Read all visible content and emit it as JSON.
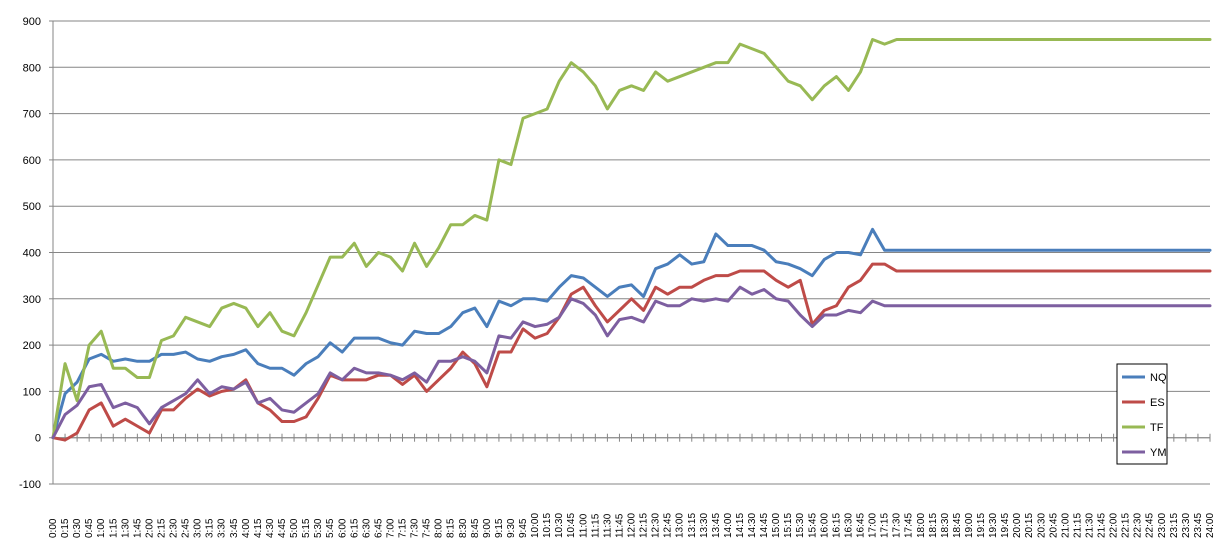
{
  "chart_data": {
    "type": "line",
    "title": "",
    "xlabel": "",
    "ylabel": "",
    "ylim": [
      -100,
      900
    ],
    "y_ticks": [
      "-100",
      "0",
      "100",
      "200",
      "300",
      "400",
      "500",
      "600",
      "700",
      "800",
      "900"
    ],
    "x_tick_every": 1,
    "x": [
      "0:00",
      "0:15",
      "0:30",
      "0:45",
      "1:00",
      "1:15",
      "1:30",
      "1:45",
      "2:00",
      "2:15",
      "2:30",
      "2:45",
      "3:00",
      "3:15",
      "3:30",
      "3:45",
      "4:00",
      "4:15",
      "4:30",
      "4:45",
      "5:00",
      "5:15",
      "5:30",
      "5:45",
      "6:00",
      "6:15",
      "6:30",
      "6:45",
      "7:00",
      "7:15",
      "7:30",
      "7:45",
      "8:00",
      "8:15",
      "8:30",
      "8:45",
      "9:00",
      "9:15",
      "9:30",
      "9:45",
      "10:00",
      "10:15",
      "10:30",
      "10:45",
      "11:00",
      "11:15",
      "11:30",
      "11:45",
      "12:00",
      "12:15",
      "12:30",
      "12:45",
      "13:00",
      "13:15",
      "13:30",
      "13:45",
      "14:00",
      "14:15",
      "14:30",
      "14:45",
      "15:00",
      "15:15",
      "15:30",
      "15:45",
      "16:00",
      "16:15",
      "16:30",
      "16:45",
      "17:00",
      "17:15",
      "17:30",
      "17:45",
      "18:00",
      "18:15",
      "18:30",
      "18:45",
      "19:00",
      "19:15",
      "19:30",
      "19:45",
      "20:00",
      "20:15",
      "20:30",
      "20:45",
      "21:00",
      "21:15",
      "21:30",
      "21:45",
      "22:00",
      "22:15",
      "22:30",
      "22:45",
      "23:00",
      "23:15",
      "23:30",
      "23:45",
      "24:00"
    ],
    "x_labels_shown": [
      "0:00",
      "0:15",
      "0:30",
      "0:45",
      "1:00",
      "1:15",
      "1:30",
      "1:45",
      "2:00",
      "2:15",
      "2:30",
      "2:45",
      "3:00",
      "3:15",
      "3:30",
      "3:45",
      "4:00",
      "4:15",
      "4:30",
      "4:45",
      "5:00",
      "5:15",
      "5:30",
      "5:45",
      "6:00",
      "6:15",
      "6:30",
      "6:45",
      "7:00",
      "7:15",
      "7:30",
      "7:45",
      "8:00",
      "8:15",
      "8:30",
      "8:45",
      "9:00",
      "9:15",
      "9:30",
      "9:45",
      "10:00",
      "10:15",
      "10:30",
      "10:45",
      "11:00",
      "11:15",
      "11:30",
      "11:45",
      "12:00",
      "12:15",
      "12:30",
      "12:45",
      "13:00",
      "13:15",
      "13:30",
      "13:45",
      "14:00",
      "14:15",
      "14:30",
      "14:45",
      "15:00",
      "15:15",
      "15:30",
      "15:45",
      "16:00",
      "16:15",
      "16:30",
      "16:45",
      "17:00",
      "17:15",
      "17:30",
      "17:45",
      "18:00",
      "18:15",
      "18:30",
      "18:45",
      "19:00",
      "19:15",
      "19:30",
      "19:45",
      "20:00",
      "20:15",
      "20:30",
      "20:45",
      "21:00",
      "21:15",
      "21:30",
      "21:45",
      "22:00",
      "22:15",
      "22:30",
      "22:45",
      "23:00",
      "23:15",
      "23:30",
      "23:45",
      "24:00"
    ],
    "grid": true,
    "legend_position": "right",
    "series": [
      {
        "name": "NQ",
        "color": "#4A7EBB",
        "values": [
          0,
          95,
          120,
          170,
          180,
          165,
          170,
          165,
          165,
          180,
          180,
          185,
          170,
          165,
          175,
          180,
          190,
          160,
          150,
          150,
          135,
          160,
          175,
          205,
          185,
          215,
          215,
          215,
          205,
          200,
          230,
          225,
          225,
          240,
          270,
          280,
          240,
          295,
          285,
          300,
          300,
          295,
          325,
          350,
          345,
          325,
          305,
          325,
          330,
          305,
          365,
          375,
          395,
          375,
          380,
          440,
          415,
          415,
          415,
          405,
          380,
          375,
          365,
          350,
          385,
          400,
          400,
          395,
          450,
          405,
          405,
          405,
          405,
          405,
          405,
          405,
          405,
          405,
          405,
          405,
          405,
          405,
          405,
          405,
          405,
          405,
          405,
          405,
          405,
          405,
          405,
          405,
          405,
          405,
          405,
          405,
          405
        ]
      },
      {
        "name": "ES",
        "color": "#BE4B48",
        "values": [
          0,
          -5,
          10,
          60,
          75,
          25,
          40,
          25,
          10,
          60,
          60,
          85,
          105,
          90,
          100,
          105,
          125,
          75,
          60,
          35,
          35,
          45,
          85,
          135,
          125,
          125,
          125,
          135,
          135,
          115,
          135,
          100,
          125,
          150,
          185,
          160,
          110,
          185,
          185,
          235,
          215,
          225,
          260,
          310,
          325,
          285,
          250,
          275,
          300,
          275,
          325,
          310,
          325,
          325,
          340,
          350,
          350,
          360,
          360,
          360,
          340,
          325,
          340,
          245,
          275,
          285,
          325,
          340,
          375,
          375,
          360,
          360,
          360,
          360,
          360,
          360,
          360,
          360,
          360,
          360,
          360,
          360,
          360,
          360,
          360,
          360,
          360,
          360,
          360,
          360,
          360,
          360,
          360,
          360,
          360,
          360,
          360
        ]
      },
      {
        "name": "TF",
        "color": "#98B954",
        "values": [
          0,
          160,
          80,
          200,
          230,
          150,
          150,
          130,
          130,
          210,
          220,
          260,
          250,
          240,
          280,
          290,
          280,
          240,
          270,
          230,
          220,
          270,
          330,
          390,
          390,
          420,
          370,
          400,
          390,
          360,
          420,
          370,
          410,
          460,
          460,
          480,
          470,
          600,
          590,
          690,
          700,
          710,
          770,
          810,
          790,
          760,
          710,
          750,
          760,
          750,
          790,
          770,
          780,
          790,
          800,
          810,
          810,
          850,
          840,
          830,
          800,
          770,
          760,
          730,
          760,
          780,
          750,
          790,
          860,
          850,
          860,
          860,
          860,
          860,
          860,
          860,
          860,
          860,
          860,
          860,
          860,
          860,
          860,
          860,
          860,
          860,
          860,
          860,
          860,
          860,
          860,
          860,
          860,
          860,
          860,
          860,
          860
        ]
      },
      {
        "name": "YM",
        "color": "#7D5FA0",
        "values": [
          0,
          50,
          70,
          110,
          115,
          65,
          75,
          65,
          30,
          65,
          80,
          95,
          125,
          95,
          110,
          105,
          120,
          75,
          85,
          60,
          55,
          75,
          95,
          140,
          125,
          150,
          140,
          140,
          135,
          125,
          140,
          120,
          165,
          165,
          175,
          165,
          140,
          220,
          215,
          250,
          240,
          245,
          260,
          300,
          290,
          265,
          220,
          255,
          260,
          250,
          295,
          285,
          285,
          300,
          295,
          300,
          295,
          325,
          310,
          320,
          300,
          295,
          265,
          240,
          265,
          265,
          275,
          270,
          295,
          285,
          285,
          285,
          285,
          285,
          285,
          285,
          285,
          285,
          285,
          285,
          285,
          285,
          285,
          285,
          285,
          285,
          285,
          285,
          285,
          285,
          285,
          285,
          285,
          285,
          285,
          285,
          285
        ]
      }
    ]
  }
}
